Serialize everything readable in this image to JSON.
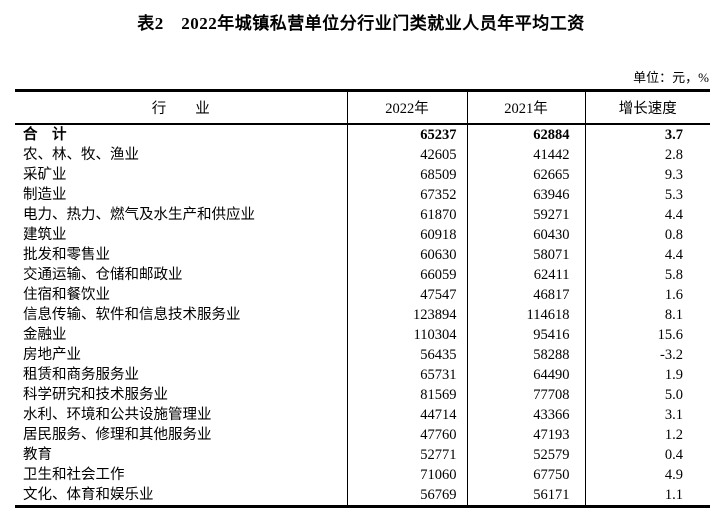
{
  "title": "表2　2022年城镇私营单位分行业门类就业人员年平均工资",
  "unit_note": "单位：元，%",
  "colors": {
    "text": "#000000",
    "border": "#000000",
    "background": "#ffffff"
  },
  "table": {
    "columns": [
      "行　　业",
      "2022年",
      "2021年",
      "增长速度"
    ],
    "rows": [
      {
        "industry": "合　计",
        "y2022": "65237",
        "y2021": "62884",
        "growth": "3.7",
        "bold": true
      },
      {
        "industry": "农、林、牧、渔业",
        "y2022": "42605",
        "y2021": "41442",
        "growth": "2.8",
        "bold": false
      },
      {
        "industry": "采矿业",
        "y2022": "68509",
        "y2021": "62665",
        "growth": "9.3",
        "bold": false
      },
      {
        "industry": "制造业",
        "y2022": "67352",
        "y2021": "63946",
        "growth": "5.3",
        "bold": false
      },
      {
        "industry": "电力、热力、燃气及水生产和供应业",
        "y2022": "61870",
        "y2021": "59271",
        "growth": "4.4",
        "bold": false
      },
      {
        "industry": "建筑业",
        "y2022": "60918",
        "y2021": "60430",
        "growth": "0.8",
        "bold": false
      },
      {
        "industry": "批发和零售业",
        "y2022": "60630",
        "y2021": "58071",
        "growth": "4.4",
        "bold": false
      },
      {
        "industry": "交通运输、仓储和邮政业",
        "y2022": "66059",
        "y2021": "62411",
        "growth": "5.8",
        "bold": false
      },
      {
        "industry": "住宿和餐饮业",
        "y2022": "47547",
        "y2021": "46817",
        "growth": "1.6",
        "bold": false
      },
      {
        "industry": "信息传输、软件和信息技术服务业",
        "y2022": "123894",
        "y2021": "114618",
        "growth": "8.1",
        "bold": false
      },
      {
        "industry": "金融业",
        "y2022": "110304",
        "y2021": "95416",
        "growth": "15.6",
        "bold": false
      },
      {
        "industry": "房地产业",
        "y2022": "56435",
        "y2021": "58288",
        "growth": "-3.2",
        "bold": false
      },
      {
        "industry": "租赁和商务服务业",
        "y2022": "65731",
        "y2021": "64490",
        "growth": "1.9",
        "bold": false
      },
      {
        "industry": "科学研究和技术服务业",
        "y2022": "81569",
        "y2021": "77708",
        "growth": "5.0",
        "bold": false
      },
      {
        "industry": "水利、环境和公共设施管理业",
        "y2022": "44714",
        "y2021": "43366",
        "growth": "3.1",
        "bold": false
      },
      {
        "industry": "居民服务、修理和其他服务业",
        "y2022": "47760",
        "y2021": "47193",
        "growth": "1.2",
        "bold": false
      },
      {
        "industry": "教育",
        "y2022": "52771",
        "y2021": "52579",
        "growth": "0.4",
        "bold": false
      },
      {
        "industry": "卫生和社会工作",
        "y2022": "71060",
        "y2021": "67750",
        "growth": "4.9",
        "bold": false
      },
      {
        "industry": "文化、体育和娱乐业",
        "y2022": "56769",
        "y2021": "56171",
        "growth": "1.1",
        "bold": false
      }
    ]
  }
}
